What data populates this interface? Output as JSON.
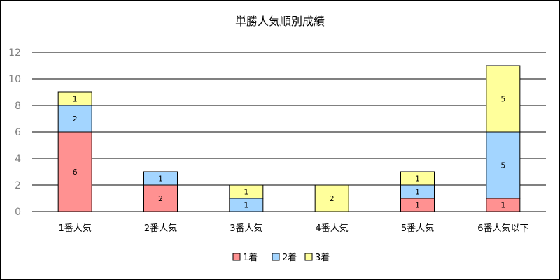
{
  "chart_data": {
    "type": "bar",
    "stacked": true,
    "title": "単勝人気順別成績",
    "categories": [
      "1番人気",
      "2番人気",
      "3番人気",
      "4番人気",
      "5番人気",
      "6番人気以下"
    ],
    "series": [
      {
        "name": "1着",
        "color": "#ff9191",
        "values": [
          6,
          2,
          0,
          0,
          1,
          1
        ]
      },
      {
        "name": "2着",
        "color": "#a3d5ff",
        "values": [
          2,
          1,
          1,
          0,
          1,
          5
        ]
      },
      {
        "name": "3着",
        "color": "#ffff9b",
        "values": [
          1,
          0,
          1,
          2,
          1,
          5
        ]
      }
    ],
    "ylim": [
      0,
      12
    ],
    "yticks": [
      0,
      2,
      4,
      6,
      8,
      10,
      12
    ],
    "grid": true,
    "legend_position": "bottom"
  }
}
